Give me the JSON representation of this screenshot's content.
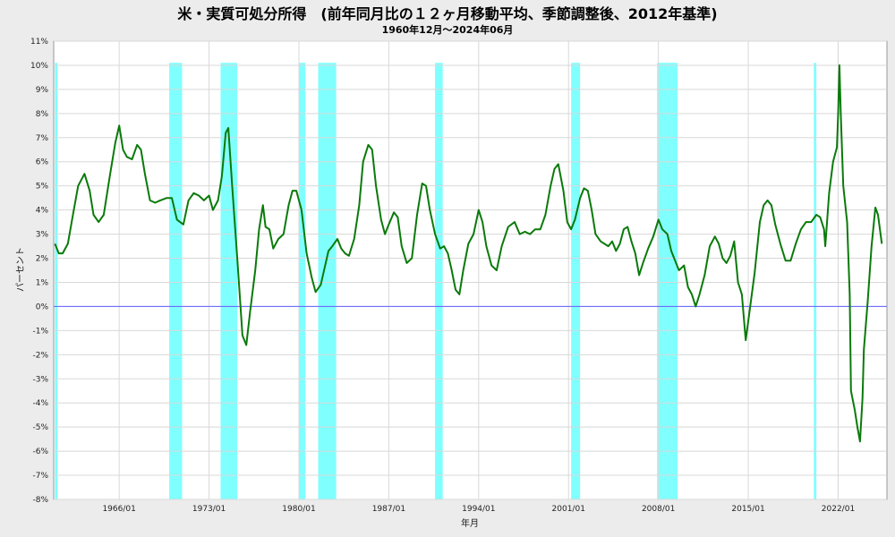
{
  "chart_data": {
    "type": "line",
    "title": "米・実質可処分所得　(前年同月比の１２ヶ月移動平均、季節調整後、2012年基準)",
    "subtitle": "1960年12月～2024年06月",
    "xlabel": "年月",
    "ylabel": "パーセント",
    "ylim": [
      -8,
      11
    ],
    "xlim": [
      1960.9,
      2025.8
    ],
    "grid": true,
    "y_ticks": [
      "11%",
      "10%",
      "9%",
      "8%",
      "7%",
      "6%",
      "5%",
      "4%",
      "3%",
      "2%",
      "1%",
      "0%",
      "-1%",
      "-2%",
      "-3%",
      "-4%",
      "-5%",
      "-6%",
      "-7%",
      "-8%"
    ],
    "x_ticks": [
      {
        "label": "1966/01",
        "x": 1966.0
      },
      {
        "label": "1973/01",
        "x": 1973.0
      },
      {
        "label": "1980/01",
        "x": 1980.0
      },
      {
        "label": "1987/01",
        "x": 1987.0
      },
      {
        "label": "1994/01",
        "x": 1994.0
      },
      {
        "label": "2001/01",
        "x": 2001.0
      },
      {
        "label": "2008/01",
        "x": 2008.0
      },
      {
        "label": "2015/01",
        "x": 2015.0
      },
      {
        "label": "2022/01",
        "x": 2022.0
      }
    ],
    "recessions": [
      [
        1961.0,
        1961.2
      ],
      [
        1969.9,
        1970.9
      ],
      [
        1973.9,
        1975.2
      ],
      [
        1980.0,
        1980.5
      ],
      [
        1981.5,
        1982.9
      ],
      [
        1990.6,
        1991.2
      ],
      [
        2001.2,
        2001.9
      ],
      [
        2007.9,
        2009.5
      ],
      [
        2020.1,
        2020.3
      ]
    ],
    "zero_line_color": "#6060ff",
    "recession_color": "#80ffff",
    "line_color": "#0a7a0a",
    "series": [
      {
        "values": [
          [
            1961.0,
            2.6
          ],
          [
            1961.3,
            2.2
          ],
          [
            1961.6,
            2.2
          ],
          [
            1962.0,
            2.6
          ],
          [
            1962.4,
            3.8
          ],
          [
            1962.8,
            5.0
          ],
          [
            1963.3,
            5.5
          ],
          [
            1963.7,
            4.8
          ],
          [
            1964.0,
            3.8
          ],
          [
            1964.4,
            3.5
          ],
          [
            1964.8,
            3.8
          ],
          [
            1965.3,
            5.5
          ],
          [
            1965.7,
            6.8
          ],
          [
            1966.0,
            7.5
          ],
          [
            1966.3,
            6.5
          ],
          [
            1966.6,
            6.2
          ],
          [
            1967.0,
            6.1
          ],
          [
            1967.4,
            6.7
          ],
          [
            1967.7,
            6.5
          ],
          [
            1968.0,
            5.5
          ],
          [
            1968.4,
            4.4
          ],
          [
            1968.8,
            4.3
          ],
          [
            1969.2,
            4.4
          ],
          [
            1969.7,
            4.5
          ],
          [
            1970.1,
            4.5
          ],
          [
            1970.5,
            3.6
          ],
          [
            1971.0,
            3.4
          ],
          [
            1971.4,
            4.4
          ],
          [
            1971.8,
            4.7
          ],
          [
            1972.2,
            4.6
          ],
          [
            1972.6,
            4.4
          ],
          [
            1973.0,
            4.6
          ],
          [
            1973.3,
            4.0
          ],
          [
            1973.7,
            4.4
          ],
          [
            1974.0,
            5.4
          ],
          [
            1974.3,
            7.2
          ],
          [
            1974.5,
            7.4
          ],
          [
            1974.8,
            5.0
          ],
          [
            1975.2,
            2.0
          ],
          [
            1975.6,
            -1.2
          ],
          [
            1975.9,
            -1.6
          ],
          [
            1976.2,
            -0.2
          ],
          [
            1976.6,
            1.5
          ],
          [
            1976.9,
            3.2
          ],
          [
            1977.2,
            4.2
          ],
          [
            1977.4,
            3.3
          ],
          [
            1977.7,
            3.2
          ],
          [
            1978.0,
            2.4
          ],
          [
            1978.4,
            2.8
          ],
          [
            1978.8,
            3.0
          ],
          [
            1979.2,
            4.2
          ],
          [
            1979.5,
            4.8
          ],
          [
            1979.8,
            4.8
          ],
          [
            1980.2,
            4.0
          ],
          [
            1980.6,
            2.2
          ],
          [
            1981.0,
            1.2
          ],
          [
            1981.3,
            0.6
          ],
          [
            1981.7,
            0.9
          ],
          [
            1982.0,
            1.6
          ],
          [
            1982.3,
            2.3
          ],
          [
            1982.6,
            2.5
          ],
          [
            1983.0,
            2.8
          ],
          [
            1983.3,
            2.4
          ],
          [
            1983.6,
            2.2
          ],
          [
            1983.9,
            2.1
          ],
          [
            1984.3,
            2.8
          ],
          [
            1984.7,
            4.2
          ],
          [
            1985.0,
            6.0
          ],
          [
            1985.4,
            6.7
          ],
          [
            1985.7,
            6.5
          ],
          [
            1986.0,
            5.0
          ],
          [
            1986.4,
            3.6
          ],
          [
            1986.7,
            3.0
          ],
          [
            1987.0,
            3.4
          ],
          [
            1987.4,
            3.9
          ],
          [
            1987.7,
            3.7
          ],
          [
            1988.0,
            2.5
          ],
          [
            1988.4,
            1.8
          ],
          [
            1988.8,
            2.0
          ],
          [
            1989.2,
            3.8
          ],
          [
            1989.6,
            5.1
          ],
          [
            1989.9,
            5.0
          ],
          [
            1990.2,
            4.0
          ],
          [
            1990.6,
            3.0
          ],
          [
            1991.0,
            2.4
          ],
          [
            1991.3,
            2.5
          ],
          [
            1991.6,
            2.2
          ],
          [
            1991.9,
            1.5
          ],
          [
            1992.2,
            0.7
          ],
          [
            1992.5,
            0.5
          ],
          [
            1992.8,
            1.5
          ],
          [
            1993.2,
            2.6
          ],
          [
            1993.6,
            3.0
          ],
          [
            1994.0,
            4.0
          ],
          [
            1994.3,
            3.5
          ],
          [
            1994.6,
            2.5
          ],
          [
            1995.0,
            1.7
          ],
          [
            1995.4,
            1.5
          ],
          [
            1995.8,
            2.5
          ],
          [
            1996.3,
            3.3
          ],
          [
            1996.8,
            3.5
          ],
          [
            1997.2,
            3.0
          ],
          [
            1997.6,
            3.1
          ],
          [
            1998.0,
            3.0
          ],
          [
            1998.4,
            3.2
          ],
          [
            1998.8,
            3.2
          ],
          [
            1999.2,
            3.8
          ],
          [
            1999.6,
            5.0
          ],
          [
            1999.9,
            5.7
          ],
          [
            2000.2,
            5.9
          ],
          [
            2000.6,
            4.8
          ],
          [
            2000.9,
            3.5
          ],
          [
            2001.2,
            3.2
          ],
          [
            2001.5,
            3.6
          ],
          [
            2001.9,
            4.5
          ],
          [
            2002.2,
            4.9
          ],
          [
            2002.5,
            4.8
          ],
          [
            2002.8,
            4.0
          ],
          [
            2003.1,
            3.0
          ],
          [
            2003.5,
            2.7
          ],
          [
            2003.8,
            2.6
          ],
          [
            2004.1,
            2.5
          ],
          [
            2004.4,
            2.7
          ],
          [
            2004.7,
            2.3
          ],
          [
            2005.0,
            2.6
          ],
          [
            2005.3,
            3.2
          ],
          [
            2005.6,
            3.3
          ],
          [
            2005.9,
            2.7
          ],
          [
            2006.2,
            2.2
          ],
          [
            2006.5,
            1.3
          ],
          [
            2006.8,
            1.8
          ],
          [
            2007.2,
            2.4
          ],
          [
            2007.6,
            2.9
          ],
          [
            2008.0,
            3.6
          ],
          [
            2008.3,
            3.2
          ],
          [
            2008.7,
            3.0
          ],
          [
            2009.0,
            2.3
          ],
          [
            2009.3,
            1.9
          ],
          [
            2009.6,
            1.5
          ],
          [
            2010.0,
            1.7
          ],
          [
            2010.3,
            0.8
          ],
          [
            2010.6,
            0.5
          ],
          [
            2010.9,
            0.0
          ],
          [
            2011.2,
            0.5
          ],
          [
            2011.6,
            1.3
          ],
          [
            2012.0,
            2.5
          ],
          [
            2012.4,
            2.9
          ],
          [
            2012.7,
            2.6
          ],
          [
            2013.0,
            2.0
          ],
          [
            2013.3,
            1.8
          ],
          [
            2013.6,
            2.1
          ],
          [
            2013.9,
            2.7
          ],
          [
            2014.2,
            1.0
          ],
          [
            2014.5,
            0.5
          ],
          [
            2014.8,
            -1.4
          ],
          [
            2015.1,
            -0.2
          ],
          [
            2015.5,
            1.4
          ],
          [
            2015.9,
            3.5
          ],
          [
            2016.2,
            4.2
          ],
          [
            2016.5,
            4.4
          ],
          [
            2016.8,
            4.2
          ],
          [
            2017.1,
            3.4
          ],
          [
            2017.5,
            2.6
          ],
          [
            2017.9,
            1.9
          ],
          [
            2018.3,
            1.9
          ],
          [
            2018.7,
            2.6
          ],
          [
            2019.1,
            3.2
          ],
          [
            2019.5,
            3.5
          ],
          [
            2019.9,
            3.5
          ],
          [
            2020.3,
            3.8
          ],
          [
            2020.6,
            3.7
          ],
          [
            2020.9,
            3.2
          ],
          [
            2021.0,
            2.5
          ],
          [
            2021.3,
            4.7
          ],
          [
            2021.6,
            6.0
          ],
          [
            2021.9,
            6.6
          ],
          [
            2022.0,
            8.0
          ],
          [
            2022.1,
            10.0
          ],
          [
            2022.2,
            8.0
          ],
          [
            2022.4,
            5.0
          ],
          [
            2022.7,
            3.5
          ],
          [
            2022.9,
            0.5
          ],
          [
            2023.0,
            -3.5
          ],
          [
            2023.3,
            -4.3
          ],
          [
            2023.5,
            -5.0
          ],
          [
            2023.7,
            -5.6
          ],
          [
            2023.9,
            -3.8
          ],
          [
            2024.0,
            -1.8
          ],
          [
            2024.3,
            0.2
          ],
          [
            2024.6,
            2.5
          ],
          [
            2024.9,
            4.1
          ],
          [
            2025.1,
            3.8
          ],
          [
            2025.4,
            2.6
          ]
        ]
      }
    ]
  }
}
